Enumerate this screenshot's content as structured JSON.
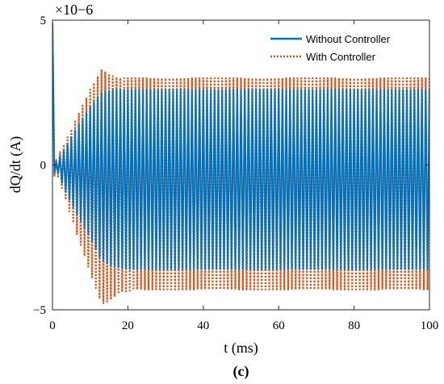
{
  "chart_data": {
    "type": "line",
    "xlabel": "t (ms)",
    "ylabel": "dQ/dt (A)",
    "exponent_label": "×10−6",
    "panel_label": "(c)",
    "xlim": [
      0,
      100
    ],
    "ylim": [
      -5,
      5
    ],
    "x_ticks": [
      0,
      20,
      40,
      60,
      80,
      100
    ],
    "y_ticks": [
      -5,
      0,
      5
    ],
    "x_tick_labels": [
      "0",
      "20",
      "40",
      "60",
      "80",
      "100"
    ],
    "y_tick_labels": [
      "−5",
      "0",
      "5"
    ],
    "legend_position": "top-right",
    "grid": false,
    "oscillation_period_ms": 1.0,
    "series": [
      {
        "name": "Without Controller",
        "color": "#0072BD",
        "line_style": "solid",
        "envelope": {
          "t": [
            0,
            0.5,
            1,
            3,
            6,
            10,
            13,
            16,
            20,
            30,
            40,
            60,
            80,
            100
          ],
          "upper": [
            4.9,
            0.4,
            0.1,
            0.5,
            1.2,
            2.0,
            2.5,
            2.6,
            2.6,
            2.6,
            2.6,
            2.6,
            2.6,
            2.6
          ],
          "lower": [
            -0.1,
            -0.3,
            -0.1,
            -0.8,
            -1.6,
            -2.5,
            -3.3,
            -3.5,
            -3.6,
            -3.6,
            -3.6,
            -3.6,
            -3.6,
            -3.6
          ]
        }
      },
      {
        "name": "With Controller",
        "color": "#D95319",
        "line_style": "dotted",
        "envelope": {
          "t": [
            0,
            0.5,
            1,
            3,
            6,
            10,
            13,
            15,
            18,
            22,
            30,
            40,
            60,
            80,
            100
          ],
          "upper": [
            4.9,
            0.5,
            0.2,
            0.7,
            1.5,
            2.6,
            3.3,
            3.1,
            3.0,
            3.0,
            3.0,
            3.0,
            3.0,
            3.0,
            3.0
          ],
          "lower": [
            -0.1,
            -0.4,
            -0.2,
            -1.0,
            -2.2,
            -3.7,
            -4.8,
            -4.7,
            -4.4,
            -4.3,
            -4.3,
            -4.3,
            -4.3,
            -4.3,
            -4.3
          ]
        }
      }
    ]
  }
}
